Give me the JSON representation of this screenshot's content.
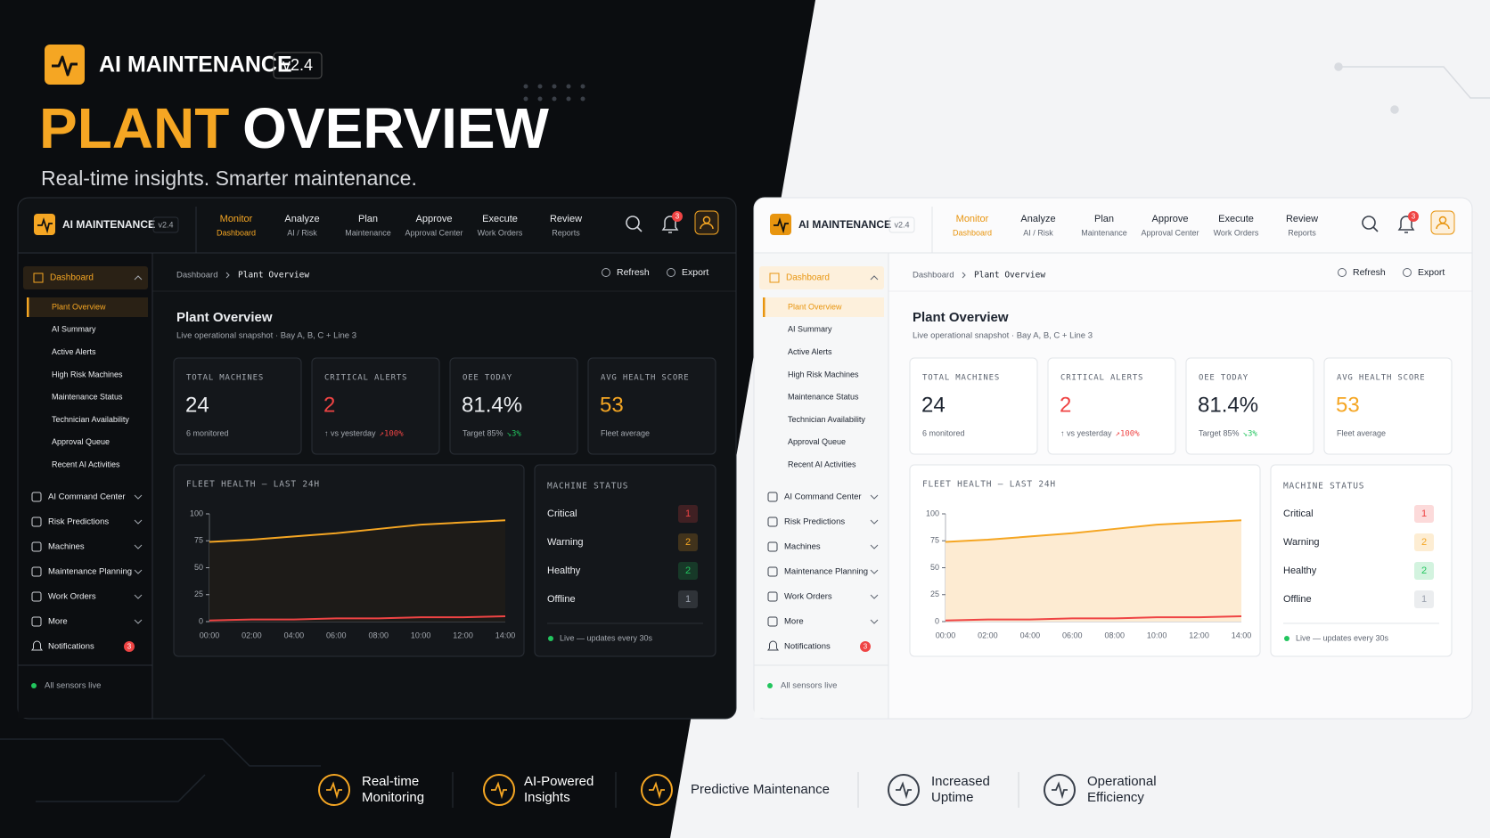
{
  "brand": {
    "name": "AI MAINTENANCE",
    "version": "v2.4"
  },
  "hero": {
    "title_accent": "PLANT",
    "title_rest": "OVERVIEW",
    "subtitle": "Real-time insights. Smarter maintenance."
  },
  "dashboard": {
    "nav": [
      {
        "label": "Monitor",
        "sub": "Dashboard"
      },
      {
        "label": "Analyze",
        "sub": "AI / Risk"
      },
      {
        "label": "Plan",
        "sub": "Maintenance"
      },
      {
        "label": "Approve",
        "sub": "Approval Center"
      },
      {
        "label": "Execute",
        "sub": "Work Orders"
      },
      {
        "label": "Review",
        "sub": "Reports"
      }
    ],
    "notification_count": 3,
    "actions": [
      "Refresh",
      "Export"
    ],
    "breadcrumb": [
      "Dashboard",
      "Plant Overview"
    ],
    "sidebar": {
      "section": "Dashboard",
      "items": [
        "Plant Overview",
        "AI Summary",
        "Active Alerts",
        "High Risk Machines",
        "Maintenance Status",
        "Technician Availability",
        "Approval Queue",
        "Recent AI Activities"
      ],
      "groups": [
        "AI Command Center",
        "Risk Predictions",
        "Machines",
        "Maintenance Planning",
        "Work Orders",
        "More"
      ],
      "notifications": {
        "label": "Notifications",
        "count": 3
      },
      "status": "All sensors live"
    },
    "page": {
      "title": "Plant Overview",
      "subtitle": "Live operational snapshot · Bay A, B, C + Line 3"
    },
    "kpis": [
      {
        "label": "TOTAL MACHINES",
        "value": 24,
        "note": "6 monitored"
      },
      {
        "label": "CRITICAL ALERTS",
        "value": 2,
        "note": "↑ vs yesterday",
        "delta": "↗100%",
        "delta_color": "#ef4444",
        "value_color": "#ef4444"
      },
      {
        "label": "OEE TODAY",
        "value": "81.4%",
        "note": "Target 85%",
        "delta": "↘3%",
        "delta_color": "#22c55e"
      },
      {
        "label": "AVG HEALTH SCORE",
        "value": 53,
        "note": "Fleet average",
        "value_color": "#f5a623"
      }
    ],
    "fleet_chart": {
      "type": "line",
      "title": "FLEET HEALTH — LAST 24H",
      "x": [
        "00:00",
        "02:00",
        "04:00",
        "06:00",
        "08:00",
        "10:00",
        "12:00",
        "14:00"
      ],
      "series": [
        {
          "color": "#f5a623",
          "values": [
            74,
            76,
            79,
            82,
            86,
            90,
            92,
            94
          ]
        },
        {
          "color": "#ef4444",
          "values": [
            1,
            2,
            2,
            3,
            3,
            4,
            4,
            5
          ]
        }
      ],
      "ylim": [
        0,
        100
      ],
      "yticks": [
        0,
        25,
        50,
        75,
        100
      ]
    },
    "machine_status": {
      "title": "MACHINE STATUS",
      "rows": [
        {
          "label": "Critical",
          "count": 1,
          "color": "#ef4444"
        },
        {
          "label": "Warning",
          "count": 2,
          "color": "#f5a623"
        },
        {
          "label": "Healthy",
          "count": 2,
          "color": "#22c55e"
        },
        {
          "label": "Offline",
          "count": 1,
          "color": "#9ca3af"
        }
      ],
      "footer": "Live — updates every 30s"
    }
  },
  "features": [
    {
      "lines": [
        "Real-time",
        "Monitoring"
      ]
    },
    {
      "lines": [
        "AI-Powered",
        "Insights"
      ]
    },
    {
      "lines": [
        "Predictive Maintenance"
      ]
    },
    {
      "lines": [
        "Increased",
        "Uptime"
      ]
    },
    {
      "lines": [
        "Operational",
        "Efficiency"
      ]
    }
  ]
}
